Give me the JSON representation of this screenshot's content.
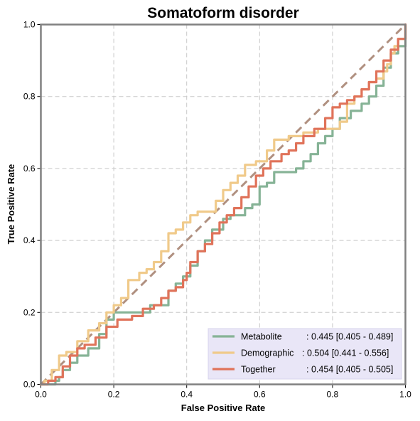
{
  "chart_data": {
    "type": "line",
    "title": "Somatoform disorder",
    "xlabel": "False Positive Rate",
    "ylabel": "True Positive Rate",
    "xlim": [
      0.0,
      1.0
    ],
    "ylim": [
      0.0,
      1.0
    ],
    "xticks": [
      "0.0",
      "0.2",
      "0.4",
      "0.6",
      "0.8",
      "1.0"
    ],
    "yticks": [
      "0.0",
      "0.2",
      "0.4",
      "0.6",
      "0.8",
      "1.0"
    ],
    "grid": true,
    "legend_position": "bottom-right",
    "series": [
      {
        "name": "Metabolite",
        "label_value": ": 0.445 [0.405 - 0.489]",
        "color": "#86b396",
        "points": [
          [
            0.0,
            0.0
          ],
          [
            0.03,
            0.0
          ],
          [
            0.04,
            0.01
          ],
          [
            0.05,
            0.02
          ],
          [
            0.06,
            0.04
          ],
          [
            0.08,
            0.06
          ],
          [
            0.1,
            0.08
          ],
          [
            0.13,
            0.1
          ],
          [
            0.16,
            0.14
          ],
          [
            0.18,
            0.18
          ],
          [
            0.2,
            0.2
          ],
          [
            0.29,
            0.2
          ],
          [
            0.3,
            0.22
          ],
          [
            0.33,
            0.22
          ],
          [
            0.35,
            0.26
          ],
          [
            0.37,
            0.28
          ],
          [
            0.39,
            0.3
          ],
          [
            0.41,
            0.33
          ],
          [
            0.43,
            0.37
          ],
          [
            0.45,
            0.4
          ],
          [
            0.47,
            0.43
          ],
          [
            0.5,
            0.46
          ],
          [
            0.52,
            0.47
          ],
          [
            0.54,
            0.47
          ],
          [
            0.56,
            0.49
          ],
          [
            0.58,
            0.5
          ],
          [
            0.6,
            0.55
          ],
          [
            0.62,
            0.56
          ],
          [
            0.64,
            0.59
          ],
          [
            0.66,
            0.59
          ],
          [
            0.68,
            0.59
          ],
          [
            0.7,
            0.6
          ],
          [
            0.72,
            0.62
          ],
          [
            0.74,
            0.64
          ],
          [
            0.76,
            0.67
          ],
          [
            0.78,
            0.69
          ],
          [
            0.8,
            0.71
          ],
          [
            0.82,
            0.74
          ],
          [
            0.85,
            0.76
          ],
          [
            0.88,
            0.78
          ],
          [
            0.9,
            0.8
          ],
          [
            0.92,
            0.83
          ],
          [
            0.94,
            0.88
          ],
          [
            0.96,
            0.92
          ],
          [
            0.98,
            0.94
          ],
          [
            1.0,
            1.0
          ]
        ]
      },
      {
        "name": "Demographic",
        "label_value": ": 0.504 [0.441 - 0.556]",
        "color": "#f0ca8a",
        "points": [
          [
            0.0,
            0.0
          ],
          [
            0.01,
            0.01
          ],
          [
            0.03,
            0.04
          ],
          [
            0.05,
            0.08
          ],
          [
            0.07,
            0.09
          ],
          [
            0.1,
            0.12
          ],
          [
            0.13,
            0.15
          ],
          [
            0.16,
            0.17
          ],
          [
            0.18,
            0.2
          ],
          [
            0.2,
            0.22
          ],
          [
            0.22,
            0.24
          ],
          [
            0.24,
            0.29
          ],
          [
            0.27,
            0.31
          ],
          [
            0.29,
            0.32
          ],
          [
            0.31,
            0.34
          ],
          [
            0.33,
            0.37
          ],
          [
            0.35,
            0.42
          ],
          [
            0.37,
            0.43
          ],
          [
            0.39,
            0.45
          ],
          [
            0.41,
            0.47
          ],
          [
            0.43,
            0.48
          ],
          [
            0.46,
            0.48
          ],
          [
            0.48,
            0.51
          ],
          [
            0.5,
            0.54
          ],
          [
            0.52,
            0.56
          ],
          [
            0.54,
            0.58
          ],
          [
            0.56,
            0.61
          ],
          [
            0.59,
            0.62
          ],
          [
            0.62,
            0.65
          ],
          [
            0.64,
            0.68
          ],
          [
            0.68,
            0.69
          ],
          [
            0.72,
            0.7
          ],
          [
            0.76,
            0.71
          ],
          [
            0.8,
            0.71
          ],
          [
            0.82,
            0.73
          ],
          [
            0.84,
            0.78
          ],
          [
            0.86,
            0.8
          ],
          [
            0.88,
            0.82
          ],
          [
            0.9,
            0.84
          ],
          [
            0.92,
            0.85
          ],
          [
            0.94,
            0.87
          ],
          [
            0.95,
            0.89
          ],
          [
            0.96,
            0.92
          ],
          [
            0.97,
            0.94
          ],
          [
            0.98,
            0.96
          ],
          [
            1.0,
            1.0
          ]
        ]
      },
      {
        "name": "Together",
        "label_value": ": 0.454 [0.405 - 0.505]",
        "color": "#e0735a",
        "points": [
          [
            0.0,
            0.0
          ],
          [
            0.02,
            0.01
          ],
          [
            0.04,
            0.02
          ],
          [
            0.06,
            0.05
          ],
          [
            0.08,
            0.08
          ],
          [
            0.1,
            0.1
          ],
          [
            0.12,
            0.11
          ],
          [
            0.15,
            0.13
          ],
          [
            0.18,
            0.16
          ],
          [
            0.21,
            0.18
          ],
          [
            0.25,
            0.19
          ],
          [
            0.28,
            0.21
          ],
          [
            0.31,
            0.22
          ],
          [
            0.33,
            0.24
          ],
          [
            0.35,
            0.26
          ],
          [
            0.37,
            0.27
          ],
          [
            0.39,
            0.29
          ],
          [
            0.4,
            0.31
          ],
          [
            0.41,
            0.34
          ],
          [
            0.43,
            0.37
          ],
          [
            0.45,
            0.39
          ],
          [
            0.47,
            0.42
          ],
          [
            0.49,
            0.45
          ],
          [
            0.51,
            0.47
          ],
          [
            0.53,
            0.49
          ],
          [
            0.55,
            0.52
          ],
          [
            0.57,
            0.55
          ],
          [
            0.59,
            0.58
          ],
          [
            0.61,
            0.6
          ],
          [
            0.63,
            0.62
          ],
          [
            0.66,
            0.64
          ],
          [
            0.68,
            0.65
          ],
          [
            0.7,
            0.67
          ],
          [
            0.72,
            0.69
          ],
          [
            0.75,
            0.71
          ],
          [
            0.78,
            0.74
          ],
          [
            0.8,
            0.77
          ],
          [
            0.82,
            0.78
          ],
          [
            0.84,
            0.79
          ],
          [
            0.86,
            0.8
          ],
          [
            0.88,
            0.82
          ],
          [
            0.9,
            0.84
          ],
          [
            0.92,
            0.87
          ],
          [
            0.94,
            0.9
          ],
          [
            0.96,
            0.93
          ],
          [
            0.98,
            0.96
          ],
          [
            1.0,
            1.0
          ]
        ]
      }
    ],
    "reference_line": {
      "points": [
        [
          0.0,
          0.0
        ],
        [
          1.0,
          1.0
        ]
      ],
      "color": "#b09080"
    }
  }
}
